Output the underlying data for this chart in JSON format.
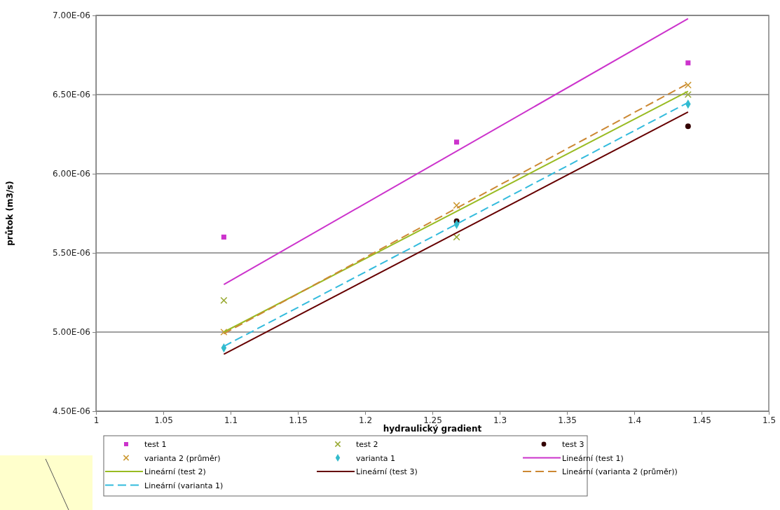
{
  "chart_data": {
    "type": "scatter",
    "xlabel": "hydraulický gradient",
    "ylabel": "průtok (m3/s)",
    "xlim": [
      1,
      1.5
    ],
    "xticks": [
      1,
      1.05,
      1.1,
      1.15,
      1.2,
      1.25,
      1.3,
      1.35,
      1.4,
      1.45,
      1.5
    ],
    "ylim": [
      4.5e-06,
      7e-06
    ],
    "yticks": [
      {
        "value": 4.5e-06,
        "label": "4.50E-06"
      },
      {
        "value": 5e-06,
        "label": "5.00E-06"
      },
      {
        "value": 5.5e-06,
        "label": "5.50E-06"
      },
      {
        "value": 6e-06,
        "label": "6.00E-06"
      },
      {
        "value": 6.5e-06,
        "label": "6.50E-06"
      },
      {
        "value": 7e-06,
        "label": "7.00E-06"
      }
    ],
    "grid": "y",
    "legend": "bottom",
    "series": [
      {
        "name": "test 1",
        "marker": "square",
        "color": "#cc33cc",
        "x": [
          1.095,
          1.268,
          1.44
        ],
        "values": [
          5.6e-06,
          6.2e-06,
          6.7e-06
        ]
      },
      {
        "name": "test 2",
        "marker": "cross",
        "color": "#99aa33",
        "x": [
          1.095,
          1.268,
          1.44
        ],
        "values": [
          5.2e-06,
          5.6e-06,
          6.5e-06
        ]
      },
      {
        "name": "test 3",
        "marker": "circle",
        "color": "#330000",
        "x": [
          1.268,
          1.44
        ],
        "values": [
          5.7e-06,
          6.3e-06
        ]
      },
      {
        "name": "varianta 2 (průměr)",
        "marker": "cross",
        "color": "#cc9933",
        "x": [
          1.095,
          1.268,
          1.44
        ],
        "values": [
          5e-06,
          5.8e-06,
          6.56e-06
        ]
      },
      {
        "name": "varianta 1",
        "marker": "diamond",
        "color": "#33bbcc",
        "x": [
          1.095,
          1.268,
          1.44
        ],
        "values": [
          4.9e-06,
          5.68e-06,
          6.44e-06
        ]
      },
      {
        "name": "Lineární (test 1)",
        "type": "line",
        "marker": "none",
        "line_style": "solid",
        "color": "#cc33cc",
        "x": [
          1.095,
          1.44
        ],
        "values": [
          5.3e-06,
          6.98e-06
        ]
      },
      {
        "name": "Lineární (test 2)",
        "type": "line",
        "marker": "none",
        "line_style": "solid",
        "color": "#99bb22",
        "x": [
          1.095,
          1.44
        ],
        "values": [
          5e-06,
          6.52e-06
        ]
      },
      {
        "name": "Lineární (test 3)",
        "type": "line",
        "marker": "none",
        "line_style": "solid",
        "color": "#660000",
        "x": [
          1.095,
          1.44
        ],
        "values": [
          4.86e-06,
          6.39e-06
        ]
      },
      {
        "name": "Lineární (varianta 2 (průměr))",
        "type": "line",
        "marker": "none",
        "line_style": "dashed",
        "color": "#cc8833",
        "x": [
          1.095,
          1.44
        ],
        "values": [
          4.99e-06,
          6.57e-06
        ]
      },
      {
        "name": "Lineární (varianta 1)",
        "type": "line",
        "marker": "none",
        "line_style": "dashed",
        "color": "#33bbdd",
        "x": [
          1.095,
          1.44
        ],
        "values": [
          4.91e-06,
          6.45e-06
        ]
      }
    ]
  }
}
